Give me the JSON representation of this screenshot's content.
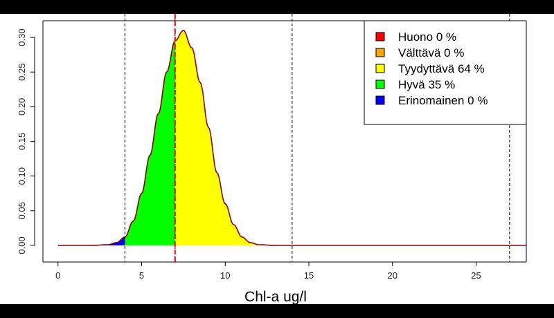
{
  "chart_data": {
    "type": "area",
    "title": "",
    "xlabel": "Chl-a ug/l",
    "ylabel": "",
    "xlim": [
      -0.9,
      28
    ],
    "ylim": [
      -0.012,
      0.324
    ],
    "x_ticks": [
      0,
      5,
      10,
      15,
      20,
      25
    ],
    "x_tick_labels": [
      "0",
      "5",
      "10",
      "15",
      "20",
      "25"
    ],
    "y_ticks": [
      0.0,
      0.05,
      0.1,
      0.15,
      0.2,
      0.25,
      0.3
    ],
    "y_tick_labels": [
      "0.00",
      "0.05",
      "0.10",
      "0.15",
      "0.20",
      "0.25",
      "0.30"
    ],
    "density": {
      "x": [
        0,
        1,
        2,
        3,
        3.5,
        4,
        4.5,
        5,
        5.5,
        6,
        6.5,
        7,
        7.5,
        8,
        8.5,
        9,
        9.5,
        10,
        10.5,
        11,
        11.5,
        12,
        13,
        15,
        20,
        28
      ],
      "y": [
        0,
        0,
        0,
        0.001,
        0.004,
        0.012,
        0.035,
        0.075,
        0.13,
        0.19,
        0.25,
        0.295,
        0.31,
        0.285,
        0.235,
        0.17,
        0.105,
        0.06,
        0.03,
        0.012,
        0.004,
        0.001,
        0,
        0,
        0,
        0
      ]
    },
    "boundaries": [
      4,
      7,
      14,
      27
    ],
    "current_value": 7,
    "classes": [
      {
        "name": "Huono",
        "label": "Huono 0 %",
        "color": "#ff0000",
        "range": [
          27,
          28
        ]
      },
      {
        "name": "Välttävä",
        "label": "Välttävä 0 %",
        "color": "#ffa500",
        "range": [
          14,
          27
        ]
      },
      {
        "name": "Tyydyttävä",
        "label": "Tyydyttävä 64 %",
        "color": "#ffff00",
        "range": [
          7,
          14
        ]
      },
      {
        "name": "Hyvä",
        "label": "Hyvä 35 %",
        "color": "#00ff00",
        "range": [
          4,
          7
        ]
      },
      {
        "name": "Erinomainen",
        "label": "Erinomainen 0 %",
        "color": "#0000ff",
        "range": [
          0,
          4
        ]
      }
    ],
    "legend_position": "top-right",
    "curve_color": "#8b0000",
    "marker_color": "#ff0000",
    "grid": false
  }
}
